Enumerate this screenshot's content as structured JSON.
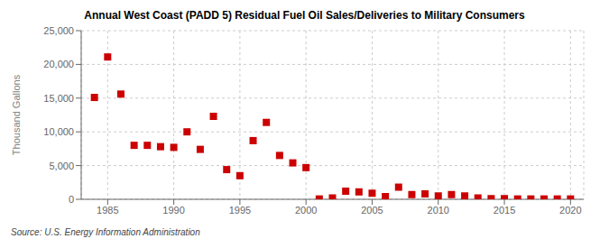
{
  "chart_data": {
    "type": "scatter",
    "title": "Annual West Coast (PADD 5) Residual Fuel Oil Sales/Deliveries to Military Consumers",
    "y_label": "Thousand Gallons",
    "source": "Source: U.S. Energy Information Administration",
    "color": "#cc0000",
    "marker": "square",
    "grid": true,
    "xlim": [
      1983,
      2021
    ],
    "ylim": [
      0,
      25000
    ],
    "xticks": [
      1985,
      1990,
      1995,
      2000,
      2005,
      2010,
      2015,
      2020
    ],
    "yticks": [
      0,
      {
        "value": 5000,
        "label": "5,000"
      },
      {
        "value": 10000,
        "label": "10,000"
      },
      {
        "value": 15000,
        "label": "15,000"
      },
      {
        "value": 20000,
        "label": "20,000"
      },
      {
        "value": 25000,
        "label": "25,000"
      }
    ],
    "x": [
      1984,
      1985,
      1986,
      1987,
      1988,
      1989,
      1990,
      1991,
      1992,
      1993,
      1994,
      1995,
      1996,
      1997,
      1998,
      1999,
      2000,
      2001,
      2002,
      2003,
      2004,
      2005,
      2006,
      2007,
      2008,
      2009,
      2010,
      2011,
      2012,
      2013,
      2014,
      2015,
      2016,
      2017,
      2018,
      2019,
      2020
    ],
    "values": [
      15100,
      21100,
      15600,
      8000,
      8000,
      7800,
      7700,
      10000,
      7400,
      12300,
      4400,
      3500,
      8700,
      11400,
      6500,
      5400,
      4700,
      50,
      200,
      1200,
      1100,
      900,
      400,
      1800,
      700,
      800,
      500,
      700,
      500,
      200,
      100,
      100,
      50,
      50,
      50,
      50,
      50
    ]
  }
}
